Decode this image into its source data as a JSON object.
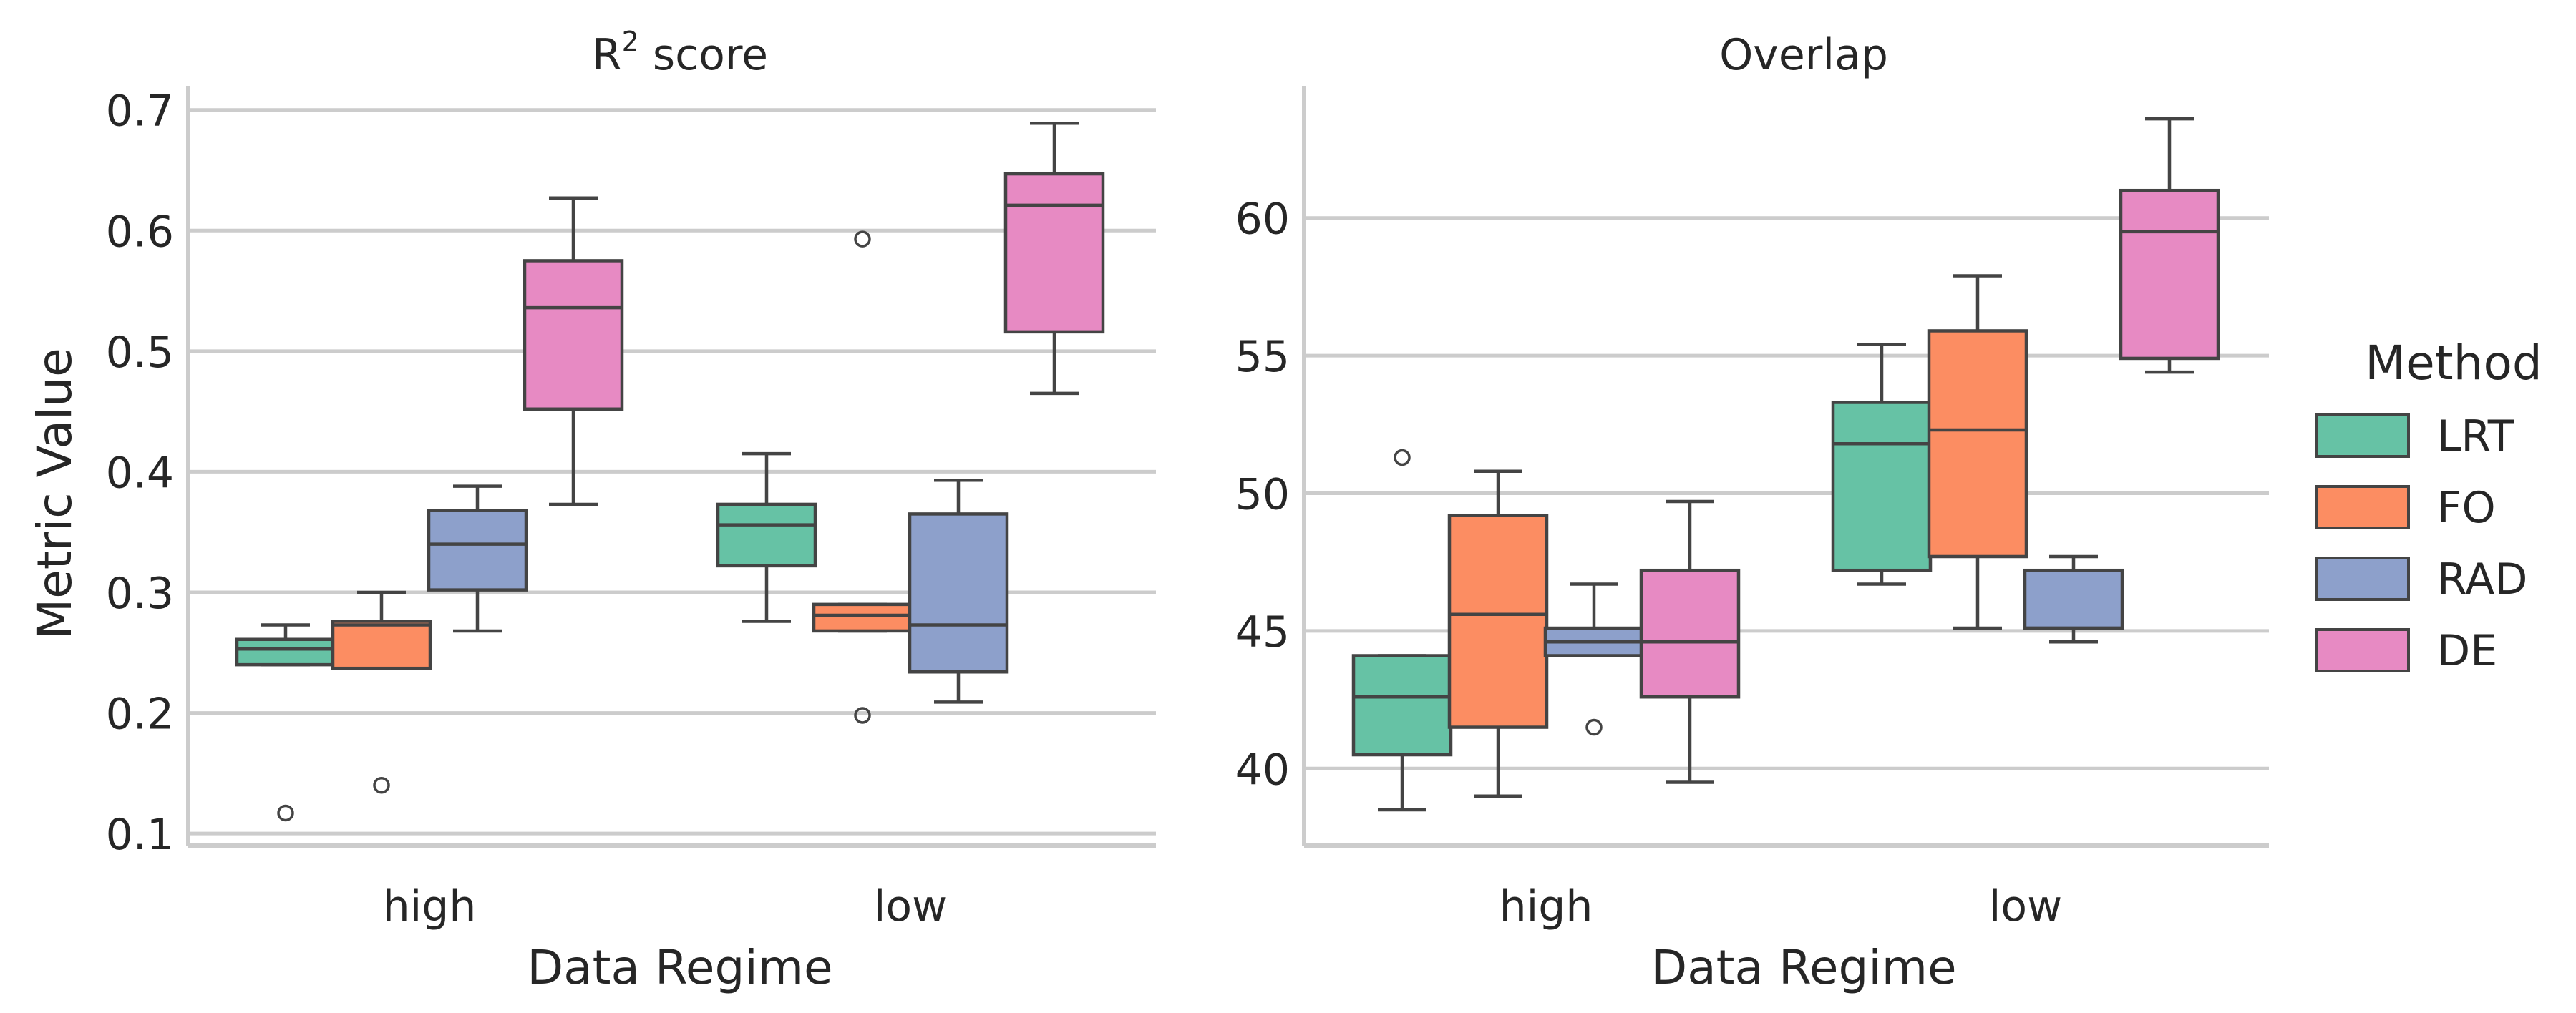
{
  "chart_data": [
    {
      "type": "box",
      "title_base": "R",
      "title_sup": "2",
      "title_rest": " score",
      "xlabel": "Data Regime",
      "ylabel": "Metric Value",
      "categories": [
        "high",
        "low"
      ],
      "ylim": [
        0.09,
        0.72
      ],
      "yticks": [
        0.1,
        0.2,
        0.3,
        0.4,
        0.5,
        0.6,
        0.7
      ],
      "ytick_labels": [
        "0.1",
        "0.2",
        "0.3",
        "0.4",
        "0.5",
        "0.6",
        "0.7"
      ],
      "grid": true,
      "series": [
        {
          "name": "LRT",
          "boxes": [
            {
              "whislo": 0.24,
              "q1": 0.24,
              "med": 0.253,
              "q3": 0.261,
              "whishi": 0.273,
              "fliers": [
                0.117
              ]
            },
            {
              "whislo": 0.276,
              "q1": 0.322,
              "med": 0.356,
              "q3": 0.373,
              "whishi": 0.415,
              "fliers": []
            }
          ]
        },
        {
          "name": "FO",
          "boxes": [
            {
              "whislo": 0.237,
              "q1": 0.237,
              "med": 0.273,
              "q3": 0.276,
              "whishi": 0.3,
              "fliers": [
                0.14
              ]
            },
            {
              "whislo": 0.268,
              "q1": 0.268,
              "med": 0.281,
              "q3": 0.29,
              "whishi": 0.29,
              "fliers": [
                0.593,
                0.198
              ]
            }
          ]
        },
        {
          "name": "RAD",
          "boxes": [
            {
              "whislo": 0.268,
              "q1": 0.302,
              "med": 0.34,
              "q3": 0.368,
              "whishi": 0.388,
              "fliers": []
            },
            {
              "whislo": 0.209,
              "q1": 0.234,
              "med": 0.273,
              "q3": 0.365,
              "whishi": 0.393,
              "fliers": []
            }
          ]
        },
        {
          "name": "DE",
          "boxes": [
            {
              "whislo": 0.373,
              "q1": 0.452,
              "med": 0.536,
              "q3": 0.575,
              "whishi": 0.627,
              "fliers": []
            },
            {
              "whislo": 0.465,
              "q1": 0.516,
              "med": 0.621,
              "q3": 0.647,
              "whishi": 0.689,
              "fliers": []
            }
          ]
        }
      ]
    },
    {
      "type": "box",
      "title_base": "Overlap",
      "title_sup": "",
      "title_rest": "",
      "xlabel": "Data Regime",
      "ylabel": "",
      "categories": [
        "high",
        "low"
      ],
      "ylim": [
        37.2,
        64.8
      ],
      "yticks": [
        40,
        45,
        50,
        55,
        60
      ],
      "ytick_labels": [
        "40",
        "45",
        "50",
        "55",
        "60"
      ],
      "grid": true,
      "series": [
        {
          "name": "LRT",
          "boxes": [
            {
              "whislo": 38.5,
              "q1": 40.5,
              "med": 42.6,
              "q3": 44.1,
              "whishi": 44.1,
              "fliers": [
                51.3
              ]
            },
            {
              "whislo": 46.7,
              "q1": 47.2,
              "med": 51.8,
              "q3": 53.3,
              "whishi": 55.4,
              "fliers": []
            }
          ]
        },
        {
          "name": "FO",
          "boxes": [
            {
              "whislo": 39.0,
              "q1": 41.5,
              "med": 45.6,
              "q3": 49.2,
              "whishi": 50.8,
              "fliers": []
            },
            {
              "whislo": 45.1,
              "q1": 47.7,
              "med": 52.3,
              "q3": 55.9,
              "whishi": 57.9,
              "fliers": []
            }
          ]
        },
        {
          "name": "RAD",
          "boxes": [
            {
              "whislo": 44.1,
              "q1": 44.1,
              "med": 44.6,
              "q3": 45.1,
              "whishi": 46.7,
              "fliers": [
                41.5
              ]
            },
            {
              "whislo": 44.6,
              "q1": 45.1,
              "med": 45.1,
              "q3": 47.2,
              "whishi": 47.7,
              "fliers": []
            }
          ]
        },
        {
          "name": "DE",
          "boxes": [
            {
              "whislo": 39.5,
              "q1": 42.6,
              "med": 44.6,
              "q3": 47.2,
              "whishi": 49.7,
              "fliers": []
            },
            {
              "whislo": 54.4,
              "q1": 54.9,
              "med": 59.5,
              "q3": 61.0,
              "whishi": 63.6,
              "fliers": []
            }
          ]
        }
      ]
    }
  ],
  "legend": {
    "title": "Method",
    "placement": "right",
    "entries": [
      {
        "name": "LRT",
        "color": "#66c2a5"
      },
      {
        "name": "FO",
        "color": "#fc8d62"
      },
      {
        "name": "RAD",
        "color": "#8da0cb"
      },
      {
        "name": "DE",
        "color": "#e78ac3"
      }
    ]
  },
  "colors": {
    "LRT": "#66c2a5",
    "FO": "#fc8d62",
    "RAD": "#8da0cb",
    "DE": "#e78ac3",
    "line": "#444444",
    "grid": "#cccccc",
    "text": "#262626"
  }
}
